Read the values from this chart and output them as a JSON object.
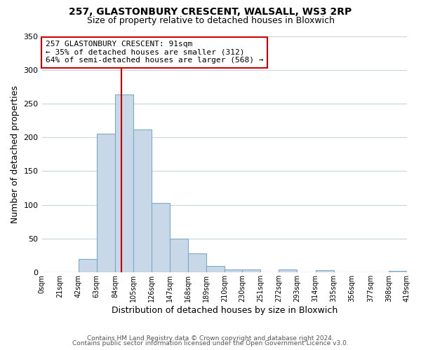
{
  "title": "257, GLASTONBURY CRESCENT, WALSALL, WS3 2RP",
  "subtitle": "Size of property relative to detached houses in Bloxwich",
  "xlabel": "Distribution of detached houses by size in Bloxwich",
  "ylabel": "Number of detached properties",
  "bin_edges": [
    0,
    21,
    42,
    63,
    84,
    105,
    126,
    147,
    168,
    189,
    210,
    230,
    251,
    272,
    293,
    314,
    335,
    356,
    377,
    398,
    419
  ],
  "bin_counts": [
    0,
    0,
    20,
    205,
    263,
    212,
    103,
    50,
    28,
    10,
    4,
    4,
    0,
    4,
    0,
    3,
    0,
    0,
    0,
    2
  ],
  "tick_labels": [
    "0sqm",
    "21sqm",
    "42sqm",
    "63sqm",
    "84sqm",
    "105sqm",
    "126sqm",
    "147sqm",
    "168sqm",
    "189sqm",
    "210sqm",
    "230sqm",
    "251sqm",
    "272sqm",
    "293sqm",
    "314sqm",
    "335sqm",
    "356sqm",
    "377sqm",
    "398sqm",
    "419sqm"
  ],
  "bar_fill_color": "#c8d8e8",
  "bar_edge_color": "#7aaac8",
  "vline_color": "#cc0000",
  "vline_x": 91,
  "annotation_text": "257 GLASTONBURY CRESCENT: 91sqm\n← 35% of detached houses are smaller (312)\n64% of semi-detached houses are larger (568) →",
  "annotation_box_edge": "#cc0000",
  "ylim": [
    0,
    350
  ],
  "yticks": [
    0,
    50,
    100,
    150,
    200,
    250,
    300,
    350
  ],
  "footer_line1": "Contains HM Land Registry data © Crown copyright and database right 2024.",
  "footer_line2": "Contains public sector information licensed under the Open Government Licence v3.0.",
  "bg_color": "#ffffff",
  "grid_color": "#c8d4e0"
}
